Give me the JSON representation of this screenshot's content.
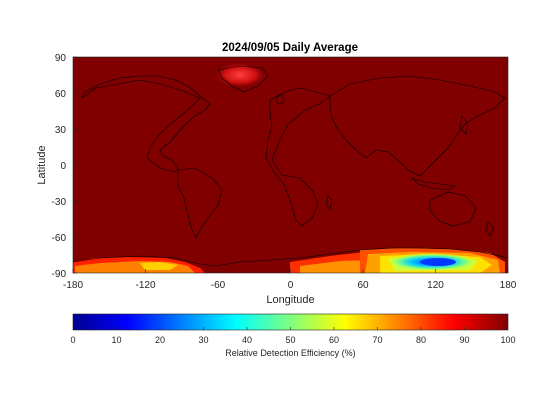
{
  "figure": {
    "title": "2024/09/05 Daily Average",
    "xlabel": "Longitude",
    "ylabel": "Latitude",
    "colorbar_label": "Relative Detection Efficiency (%)"
  },
  "map": {
    "projection": "equirectangular",
    "lon_range": [
      -180,
      180
    ],
    "lat_range": [
      -90,
      90
    ],
    "x_ticks": [
      "-180",
      "-120",
      "-60",
      "0",
      "60",
      "120",
      "180"
    ],
    "y_ticks": [
      "90",
      "60",
      "30",
      "0",
      "-30",
      "-60",
      "-90"
    ],
    "background_value_percent": 100,
    "features": [
      {
        "region": "Greenland",
        "approx_center": [
          -40,
          73
        ],
        "value_percent": 85
      },
      {
        "region": "Antarctic coast (Ross/Amundsen sector)",
        "approx_lon": [
          -170,
          -80
        ],
        "value_percent": 70
      },
      {
        "region": "Antarctic plateau (East Antarctica)",
        "approx_lon": [
          20,
          175
        ],
        "value_percent": 60
      },
      {
        "region": "East Antarctica minimum",
        "approx_center": [
          123,
          -80
        ],
        "value_percent": 22
      }
    ],
    "coastline_color": "#000000"
  },
  "colorbar": {
    "ticks": [
      "0",
      "10",
      "20",
      "30",
      "40",
      "50",
      "60",
      "70",
      "80",
      "90",
      "100"
    ],
    "range": [
      0,
      100
    ],
    "colormap": "jet"
  },
  "colors": {
    "max": "#800000",
    "axis": "#262626"
  }
}
